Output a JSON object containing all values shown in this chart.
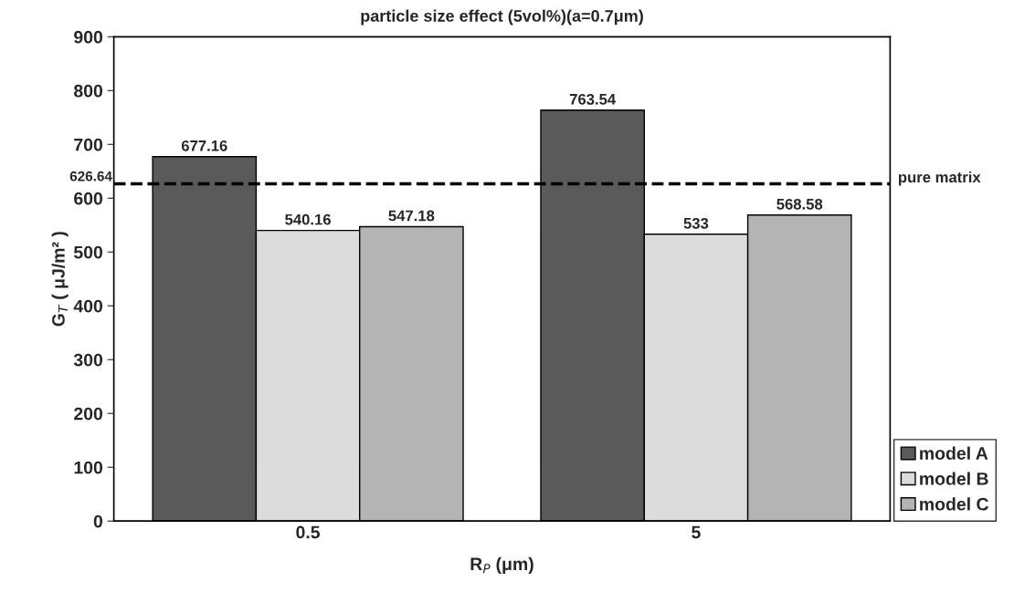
{
  "chart_data": {
    "type": "bar",
    "title": "particle size effect (5vol%)(a=0.7μm)",
    "xlabel": "R$_{P}$ (μm)",
    "ylabel": "G$_{T}$ ( μJ/m² )",
    "categories": [
      "0.5",
      "5"
    ],
    "series": [
      {
        "name": "model A",
        "color": "#5a5a5a",
        "values": [
          677.16,
          763.54
        ]
      },
      {
        "name": "model B",
        "color": "#dcdcdc",
        "values": [
          540.16,
          533
        ]
      },
      {
        "name": "model C",
        "color": "#b4b4b4",
        "values": [
          547.18,
          568.58
        ]
      }
    ],
    "ylim": [
      0,
      900
    ],
    "yticks": [
      0,
      100,
      200,
      300,
      400,
      500,
      600,
      700,
      800,
      900
    ],
    "ref_lines": [
      {
        "axis": "y",
        "value": 626.64,
        "label": "pure matrix",
        "color": "#000000",
        "line_style": "dashed"
      }
    ],
    "annotations": [
      "626.64"
    ],
    "data_labels": true,
    "grid": false,
    "legend": "bottom right"
  }
}
